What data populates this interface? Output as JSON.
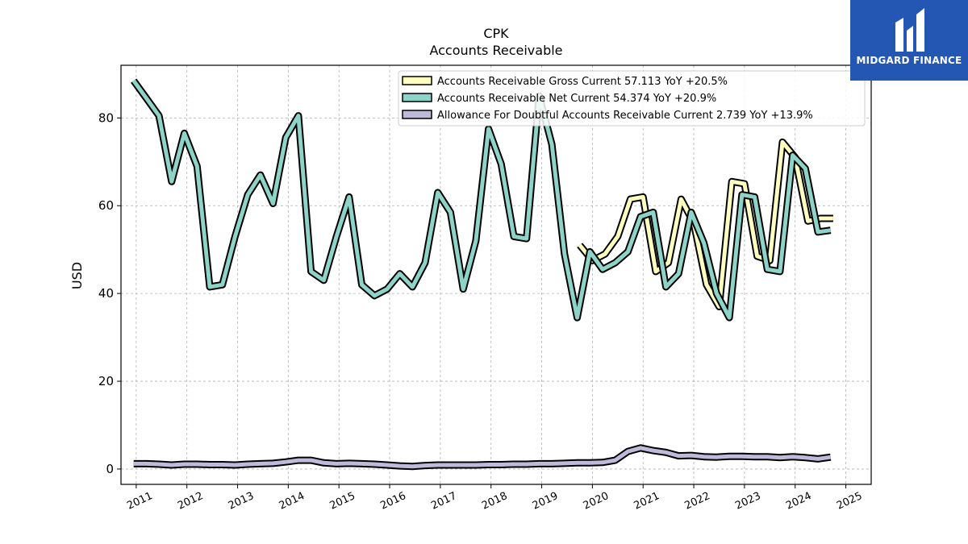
{
  "brand": {
    "name": "MIDGARD FINANCE",
    "logo_bg": "#2457b3"
  },
  "chart_data": {
    "type": "line",
    "title": "CPK",
    "subtitle": "Accounts Receivable",
    "ylabel": "USD",
    "xlabel": "",
    "ylim": [
      -3.5,
      92
    ],
    "xlim": [
      2010.7,
      2025.5
    ],
    "grid": true,
    "legend_position": "top-right",
    "yticks": [
      0,
      20,
      40,
      60,
      80
    ],
    "xticks": [
      2011,
      2012,
      2013,
      2014,
      2015,
      2016,
      2017,
      2018,
      2019,
      2020,
      2021,
      2022,
      2023,
      2024,
      2025
    ],
    "series": [
      {
        "name": "Accounts Receivable Gross Current",
        "legend_label": "Accounts Receivable Gross Current  57.113 YoY +20.5%",
        "color": "#ffffbf",
        "x": [
          2019.75,
          2020.0,
          2020.25,
          2020.5,
          2020.75,
          2021.0,
          2021.25,
          2021.5,
          2021.75,
          2022.0,
          2022.25,
          2022.5,
          2022.75,
          2023.0,
          2023.25,
          2023.5,
          2023.75,
          2024.0,
          2024.25,
          2024.5,
          2024.75
        ],
        "y": [
          51.0,
          47.5,
          49.0,
          53.0,
          61.5,
          62.0,
          45.0,
          47.0,
          61.5,
          56.0,
          42.0,
          37.0,
          65.5,
          65.0,
          48.5,
          47.5,
          74.5,
          71.0,
          56.5,
          57.1,
          57.1
        ]
      },
      {
        "name": "Accounts Receivable Net Current",
        "legend_label": "Accounts Receivable Net Current  54.374 YoY +20.9%",
        "color": "#8dd3c7",
        "x": [
          2010.95,
          2011.2,
          2011.45,
          2011.7,
          2011.95,
          2012.2,
          2012.45,
          2012.7,
          2012.95,
          2013.2,
          2013.45,
          2013.7,
          2013.95,
          2014.2,
          2014.45,
          2014.7,
          2014.95,
          2015.2,
          2015.45,
          2015.7,
          2015.95,
          2016.2,
          2016.45,
          2016.7,
          2016.95,
          2017.2,
          2017.45,
          2017.7,
          2017.95,
          2018.2,
          2018.45,
          2018.7,
          2018.95,
          2019.2,
          2019.45,
          2019.7,
          2019.95,
          2020.2,
          2020.45,
          2020.7,
          2020.95,
          2021.2,
          2021.45,
          2021.7,
          2021.95,
          2022.2,
          2022.45,
          2022.7,
          2022.95,
          2023.2,
          2023.45,
          2023.7,
          2023.95,
          2024.2,
          2024.45,
          2024.7
        ],
        "y": [
          88.5,
          84.5,
          80.5,
          65.5,
          76.5,
          69.0,
          41.5,
          42.0,
          53.0,
          62.5,
          67.0,
          60.5,
          75.5,
          80.5,
          45.0,
          43.0,
          53.0,
          62.0,
          42.0,
          39.5,
          41.0,
          44.5,
          41.5,
          47.0,
          63.0,
          58.5,
          41.0,
          52.0,
          77.5,
          69.5,
          53.0,
          52.5,
          85.0,
          74.0,
          49.0,
          34.5,
          49.5,
          45.5,
          47.0,
          49.5,
          57.5,
          58.5,
          41.5,
          44.5,
          58.5,
          51.5,
          40.0,
          34.5,
          62.5,
          62.0,
          45.5,
          45.0,
          71.5,
          68.5,
          54.0,
          54.4
        ]
      },
      {
        "name": "Allowance For Doubtful Accounts Receivable Current",
        "legend_label": "Allowance For Doubtful Accounts Receivable Current  2.739 YoY +13.9%",
        "color": "#bebada",
        "x": [
          2010.95,
          2011.2,
          2011.45,
          2011.7,
          2011.95,
          2012.2,
          2012.45,
          2012.7,
          2012.95,
          2013.2,
          2013.45,
          2013.7,
          2013.95,
          2014.2,
          2014.45,
          2014.7,
          2014.95,
          2015.2,
          2015.45,
          2015.7,
          2015.95,
          2016.2,
          2016.45,
          2016.7,
          2016.95,
          2017.2,
          2017.45,
          2017.7,
          2017.95,
          2018.2,
          2018.45,
          2018.7,
          2018.95,
          2019.2,
          2019.45,
          2019.7,
          2019.95,
          2020.2,
          2020.45,
          2020.7,
          2020.95,
          2021.2,
          2021.45,
          2021.7,
          2021.95,
          2022.2,
          2022.45,
          2022.7,
          2022.95,
          2023.2,
          2023.45,
          2023.7,
          2023.95,
          2024.2,
          2024.45,
          2024.7
        ],
        "y": [
          1.2,
          1.2,
          1.1,
          0.9,
          1.1,
          1.1,
          1.0,
          1.0,
          0.9,
          1.1,
          1.2,
          1.3,
          1.6,
          2.0,
          2.0,
          1.4,
          1.2,
          1.3,
          1.2,
          1.1,
          0.9,
          0.7,
          0.6,
          0.8,
          0.9,
          0.9,
          0.9,
          0.9,
          1.0,
          1.0,
          1.1,
          1.1,
          1.2,
          1.2,
          1.3,
          1.4,
          1.4,
          1.5,
          2.0,
          4.0,
          4.8,
          4.2,
          3.8,
          3.0,
          3.1,
          2.8,
          2.7,
          2.9,
          2.9,
          2.8,
          2.8,
          2.6,
          2.8,
          2.6,
          2.3,
          2.7
        ]
      }
    ]
  }
}
